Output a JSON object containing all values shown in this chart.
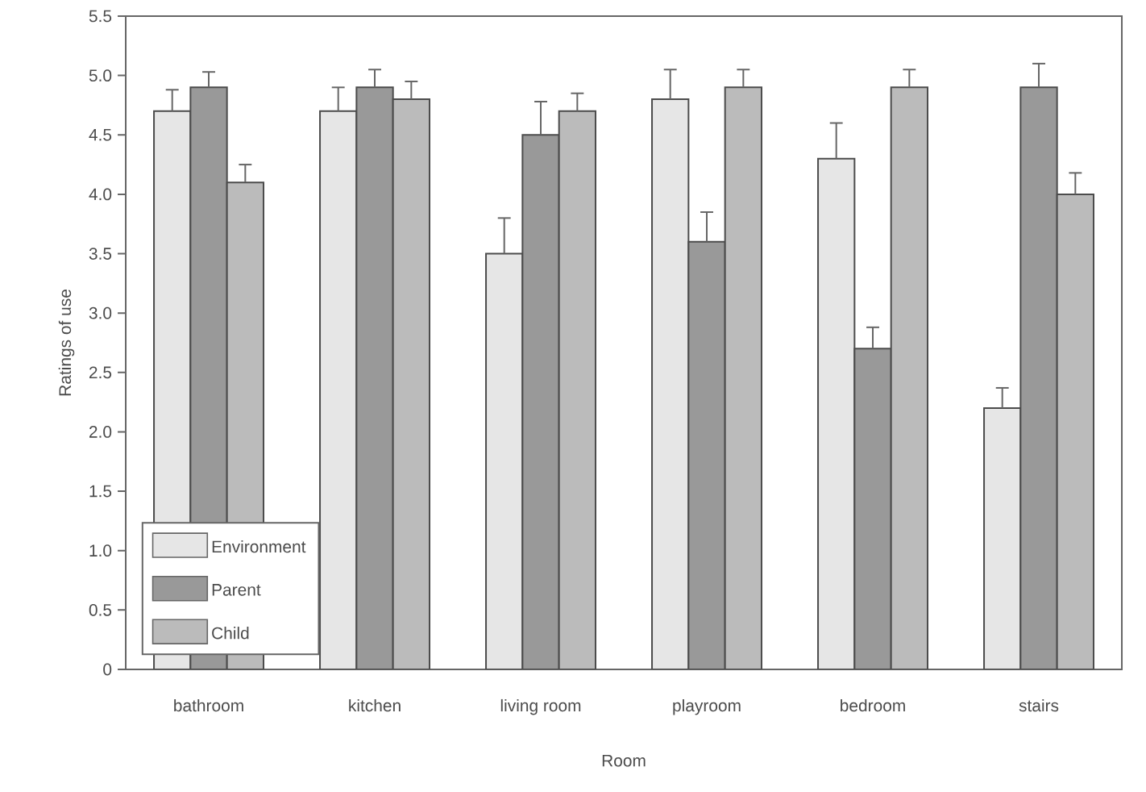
{
  "chart_data": {
    "type": "bar",
    "xlabel": "Room",
    "ylabel": "Ratings of use",
    "categories": [
      "bathroom",
      "kitchen",
      "living room",
      "playroom",
      "bedroom",
      "stairs"
    ],
    "series": [
      {
        "name": "Environment",
        "color": "#e6e6e6",
        "values": [
          4.7,
          4.7,
          3.5,
          4.8,
          4.3,
          2.2
        ],
        "errors": [
          [
            4.7,
            4.88
          ],
          [
            4.7,
            4.9
          ],
          [
            3.5,
            3.8
          ],
          [
            4.8,
            5.05
          ],
          [
            4.3,
            4.6
          ],
          [
            2.2,
            2.37
          ]
        ]
      },
      {
        "name": "Parent",
        "color": "#999999",
        "values": [
          4.9,
          4.9,
          4.5,
          3.6,
          2.7,
          4.9
        ],
        "errors": [
          [
            4.9,
            5.03
          ],
          [
            4.9,
            5.05
          ],
          [
            4.5,
            4.78
          ],
          [
            3.6,
            3.85
          ],
          [
            2.7,
            2.88
          ],
          [
            4.9,
            5.1
          ]
        ]
      },
      {
        "name": "Child",
        "color": "#bbbbbb",
        "values": [
          4.1,
          4.8,
          4.7,
          4.9,
          4.9,
          4.0
        ],
        "errors": [
          [
            4.1,
            4.25
          ],
          [
            4.8,
            4.95
          ],
          [
            4.7,
            4.85
          ],
          [
            4.9,
            5.05
          ],
          [
            4.9,
            5.05
          ],
          [
            4.0,
            4.18
          ]
        ]
      }
    ],
    "ylim": [
      0,
      5.5
    ],
    "yticks": [
      0,
      0.5,
      {
        "value": 1,
        "label": "1.0"
      },
      1.5,
      {
        "value": 2,
        "label": "2.0"
      },
      2.5,
      {
        "value": 3,
        "label": "3.0"
      },
      3.5,
      {
        "value": 4,
        "label": "4.0"
      },
      4.5,
      {
        "value": 5,
        "label": "5.0"
      },
      5.5
    ],
    "legend": "bottom left",
    "grid": false
  }
}
